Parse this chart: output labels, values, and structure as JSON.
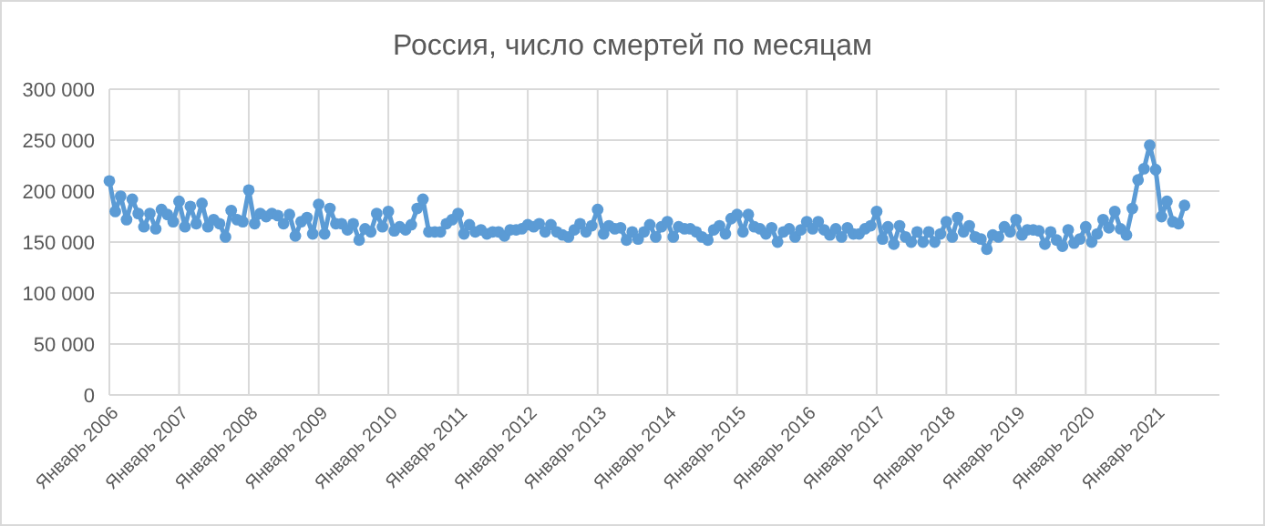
{
  "chart_data": {
    "type": "line",
    "title": "Россия, число смертей по месяцам",
    "xlim": [
      "2006-01",
      "2021-12"
    ],
    "xticks": [
      {
        "value": "2006-01",
        "label": "Январь 2006"
      },
      {
        "value": "2007-01",
        "label": "Январь 2007"
      },
      {
        "value": "2008-01",
        "label": "Январь 2008"
      },
      {
        "value": "2009-01",
        "label": "Январь 2009"
      },
      {
        "value": "2010-01",
        "label": "Январь 2010"
      },
      {
        "value": "2011-01",
        "label": "Январь 2011"
      },
      {
        "value": "2012-01",
        "label": "Январь 2012"
      },
      {
        "value": "2013-01",
        "label": "Январь 2013"
      },
      {
        "value": "2014-01",
        "label": "Январь 2014"
      },
      {
        "value": "2015-01",
        "label": "Январь 2015"
      },
      {
        "value": "2016-01",
        "label": "Январь 2016"
      },
      {
        "value": "2017-01",
        "label": "Январь 2017"
      },
      {
        "value": "2018-01",
        "label": "Январь 2018"
      },
      {
        "value": "2019-01",
        "label": "Январь 2019"
      },
      {
        "value": "2020-01",
        "label": "Январь 2020"
      },
      {
        "value": "2021-01",
        "label": "Январь 2021"
      }
    ],
    "ylim": [
      0,
      300000
    ],
    "yticks": [
      {
        "value": 0,
        "label": "0"
      },
      {
        "value": 50000,
        "label": "50 000"
      },
      {
        "value": 100000,
        "label": "100 000"
      },
      {
        "value": 150000,
        "label": "150 000"
      },
      {
        "value": 200000,
        "label": "200 000"
      },
      {
        "value": 250000,
        "label": "250 000"
      },
      {
        "value": 300000,
        "label": "300 000"
      }
    ],
    "grid": true,
    "marker": "circle",
    "line_style": "solid",
    "x": [
      "2006-01",
      "2006-02",
      "2006-03",
      "2006-04",
      "2006-05",
      "2006-06",
      "2006-07",
      "2006-08",
      "2006-09",
      "2006-10",
      "2006-11",
      "2006-12",
      "2007-01",
      "2007-02",
      "2007-03",
      "2007-04",
      "2007-05",
      "2007-06",
      "2007-07",
      "2007-08",
      "2007-09",
      "2007-10",
      "2007-11",
      "2007-12",
      "2008-01",
      "2008-02",
      "2008-03",
      "2008-04",
      "2008-05",
      "2008-06",
      "2008-07",
      "2008-08",
      "2008-09",
      "2008-10",
      "2008-11",
      "2008-12",
      "2009-01",
      "2009-02",
      "2009-03",
      "2009-04",
      "2009-05",
      "2009-06",
      "2009-07",
      "2009-08",
      "2009-09",
      "2009-10",
      "2009-11",
      "2009-12",
      "2010-01",
      "2010-02",
      "2010-03",
      "2010-04",
      "2010-05",
      "2010-06",
      "2010-07",
      "2010-08",
      "2010-09",
      "2010-10",
      "2010-11",
      "2010-12",
      "2011-01",
      "2011-02",
      "2011-03",
      "2011-04",
      "2011-05",
      "2011-06",
      "2011-07",
      "2011-08",
      "2011-09",
      "2011-10",
      "2011-11",
      "2011-12",
      "2012-01",
      "2012-02",
      "2012-03",
      "2012-04",
      "2012-05",
      "2012-06",
      "2012-07",
      "2012-08",
      "2012-09",
      "2012-10",
      "2012-11",
      "2012-12",
      "2013-01",
      "2013-02",
      "2013-03",
      "2013-04",
      "2013-05",
      "2013-06",
      "2013-07",
      "2013-08",
      "2013-09",
      "2013-10",
      "2013-11",
      "2013-12",
      "2014-01",
      "2014-02",
      "2014-03",
      "2014-04",
      "2014-05",
      "2014-06",
      "2014-07",
      "2014-08",
      "2014-09",
      "2014-10",
      "2014-11",
      "2014-12",
      "2015-01",
      "2015-02",
      "2015-03",
      "2015-04",
      "2015-05",
      "2015-06",
      "2015-07",
      "2015-08",
      "2015-09",
      "2015-10",
      "2015-11",
      "2015-12",
      "2016-01",
      "2016-02",
      "2016-03",
      "2016-04",
      "2016-05",
      "2016-06",
      "2016-07",
      "2016-08",
      "2016-09",
      "2016-10",
      "2016-11",
      "2016-12",
      "2017-01",
      "2017-02",
      "2017-03",
      "2017-04",
      "2017-05",
      "2017-06",
      "2017-07",
      "2017-08",
      "2017-09",
      "2017-10",
      "2017-11",
      "2017-12",
      "2018-01",
      "2018-02",
      "2018-03",
      "2018-04",
      "2018-05",
      "2018-06",
      "2018-07",
      "2018-08",
      "2018-09",
      "2018-10",
      "2018-11",
      "2018-12",
      "2019-01",
      "2019-02",
      "2019-03",
      "2019-04",
      "2019-05",
      "2019-06",
      "2019-07",
      "2019-08",
      "2019-09",
      "2019-10",
      "2019-11",
      "2019-12",
      "2020-01",
      "2020-02",
      "2020-03",
      "2020-04",
      "2020-05",
      "2020-06",
      "2020-07",
      "2020-08",
      "2020-09",
      "2020-10",
      "2020-11",
      "2020-12",
      "2021-01",
      "2021-02",
      "2021-03",
      "2021-04",
      "2021-05",
      "2021-06"
    ],
    "series": [
      {
        "color": "#5b9bd5",
        "values": [
          210000,
          180000,
          195000,
          172000,
          192000,
          178000,
          165000,
          178000,
          163000,
          182000,
          177000,
          170000,
          190000,
          165000,
          185000,
          168000,
          188000,
          165000,
          172000,
          168000,
          155000,
          181000,
          172000,
          170000,
          201000,
          168000,
          178000,
          175000,
          178000,
          176000,
          168000,
          177000,
          156000,
          170000,
          174000,
          158000,
          187000,
          158000,
          183000,
          168000,
          168000,
          162000,
          168000,
          152000,
          163000,
          160000,
          178000,
          165000,
          180000,
          161000,
          165000,
          162000,
          167000,
          183000,
          192000,
          160000,
          160000,
          160000,
          168000,
          172000,
          178000,
          158000,
          167000,
          160000,
          162000,
          158000,
          160000,
          160000,
          156000,
          162000,
          162000,
          163000,
          167000,
          165000,
          168000,
          160000,
          167000,
          160000,
          157000,
          155000,
          162000,
          168000,
          160000,
          166000,
          182000,
          158000,
          166000,
          163000,
          164000,
          152000,
          160000,
          153000,
          160000,
          167000,
          155000,
          165000,
          170000,
          155000,
          165000,
          163000,
          163000,
          160000,
          155000,
          152000,
          162000,
          166000,
          158000,
          173000,
          177000,
          160000,
          177000,
          165000,
          163000,
          158000,
          164000,
          150000,
          160000,
          163000,
          155000,
          162000,
          170000,
          163000,
          170000,
          162000,
          157000,
          163000,
          155000,
          164000,
          158000,
          158000,
          163000,
          166000,
          180000,
          153000,
          165000,
          148000,
          166000,
          155000,
          150000,
          160000,
          150000,
          160000,
          150000,
          158000,
          170000,
          155000,
          174000,
          160000,
          166000,
          155000,
          153000,
          143000,
          157000,
          155000,
          165000,
          160000,
          172000,
          157000,
          162000,
          162000,
          161000,
          148000,
          160000,
          152000,
          146000,
          162000,
          149000,
          153000,
          165000,
          150000,
          158000,
          172000,
          164000,
          180000,
          163000,
          157000,
          183000,
          211000,
          222000,
          245000,
          221000,
          175000,
          190000,
          170000,
          168000,
          186000
        ]
      }
    ]
  }
}
